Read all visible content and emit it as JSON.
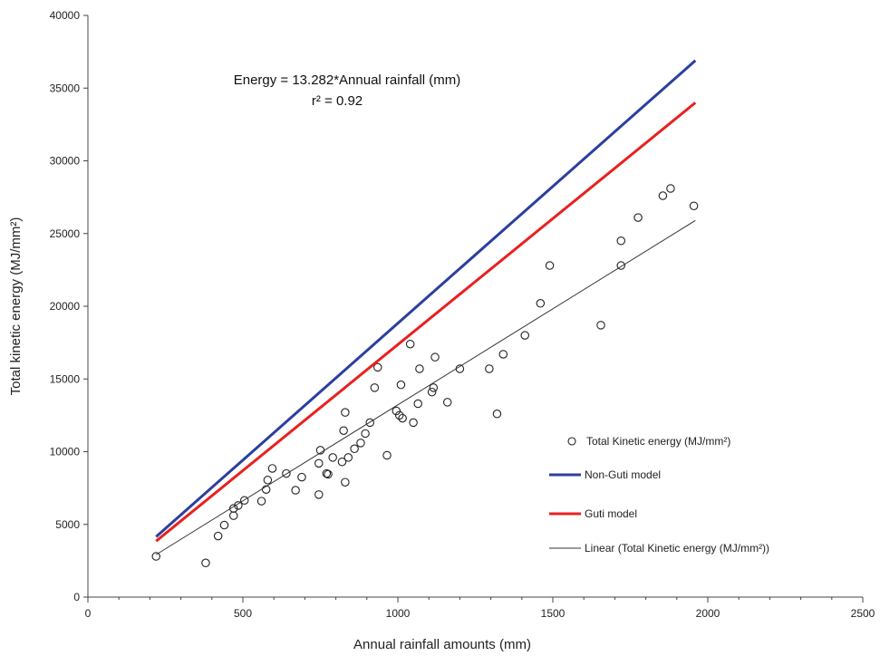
{
  "chart_data": {
    "type": "scatter",
    "xlabel": "Annual rainfall amounts (mm)",
    "ylabel": "Total kinetic energy (MJ/mm²)",
    "xlim": [
      0,
      2500
    ],
    "ylim": [
      0,
      40000
    ],
    "xticks": [
      0,
      500,
      1000,
      1500,
      2000,
      2500
    ],
    "yticks": [
      0,
      5000,
      10000,
      15000,
      20000,
      25000,
      30000,
      35000,
      40000
    ],
    "annotation": {
      "equation": "Energy = 13.282*Annual rainfall (mm)",
      "r2": "r² = 0.92"
    },
    "legend_position": "lower-right",
    "series": [
      {
        "name": "Total Kinetic energy (MJ/mm²)",
        "kind": "scatter-open-circle",
        "color": "#222222",
        "points": [
          [
            220,
            2800
          ],
          [
            380,
            2350
          ],
          [
            420,
            4200
          ],
          [
            440,
            4950
          ],
          [
            470,
            5600
          ],
          [
            470,
            6100
          ],
          [
            485,
            6300
          ],
          [
            505,
            6650
          ],
          [
            560,
            6600
          ],
          [
            575,
            7400
          ],
          [
            580,
            8050
          ],
          [
            595,
            8850
          ],
          [
            640,
            8500
          ],
          [
            670,
            7350
          ],
          [
            690,
            8250
          ],
          [
            745,
            7050
          ],
          [
            745,
            9200
          ],
          [
            750,
            10100
          ],
          [
            770,
            8500
          ],
          [
            775,
            8450
          ],
          [
            790,
            9600
          ],
          [
            820,
            9300
          ],
          [
            825,
            11450
          ],
          [
            830,
            12700
          ],
          [
            830,
            7900
          ],
          [
            840,
            9600
          ],
          [
            860,
            10200
          ],
          [
            880,
            10600
          ],
          [
            895,
            11250
          ],
          [
            910,
            12000
          ],
          [
            925,
            14400
          ],
          [
            935,
            15800
          ],
          [
            965,
            9750
          ],
          [
            995,
            12800
          ],
          [
            1005,
            12500
          ],
          [
            1010,
            14600
          ],
          [
            1015,
            12300
          ],
          [
            1040,
            17400
          ],
          [
            1050,
            12000
          ],
          [
            1065,
            13300
          ],
          [
            1070,
            15700
          ],
          [
            1110,
            14100
          ],
          [
            1115,
            14400
          ],
          [
            1120,
            16500
          ],
          [
            1160,
            13400
          ],
          [
            1200,
            15700
          ],
          [
            1295,
            15700
          ],
          [
            1320,
            12600
          ],
          [
            1340,
            16700
          ],
          [
            1410,
            18000
          ],
          [
            1460,
            20200
          ],
          [
            1490,
            22800
          ],
          [
            1655,
            18700
          ],
          [
            1720,
            22800
          ],
          [
            1720,
            24500
          ],
          [
            1775,
            26100
          ],
          [
            1855,
            27600
          ],
          [
            1880,
            28100
          ],
          [
            1955,
            26900
          ]
        ]
      },
      {
        "name": "Non-Guti model",
        "kind": "line",
        "color": "#2b3f9e",
        "points": [
          [
            220,
            4150
          ],
          [
            1960,
            36900
          ]
        ]
      },
      {
        "name": "Guti model",
        "kind": "line",
        "color": "#e8211f",
        "points": [
          [
            220,
            3850
          ],
          [
            1960,
            34000
          ]
        ]
      },
      {
        "name": "Linear (Total Kinetic energy (MJ/mm²))",
        "kind": "trendline",
        "color": "#333333",
        "points": [
          [
            220,
            2920
          ],
          [
            1960,
            25900
          ]
        ]
      }
    ]
  }
}
